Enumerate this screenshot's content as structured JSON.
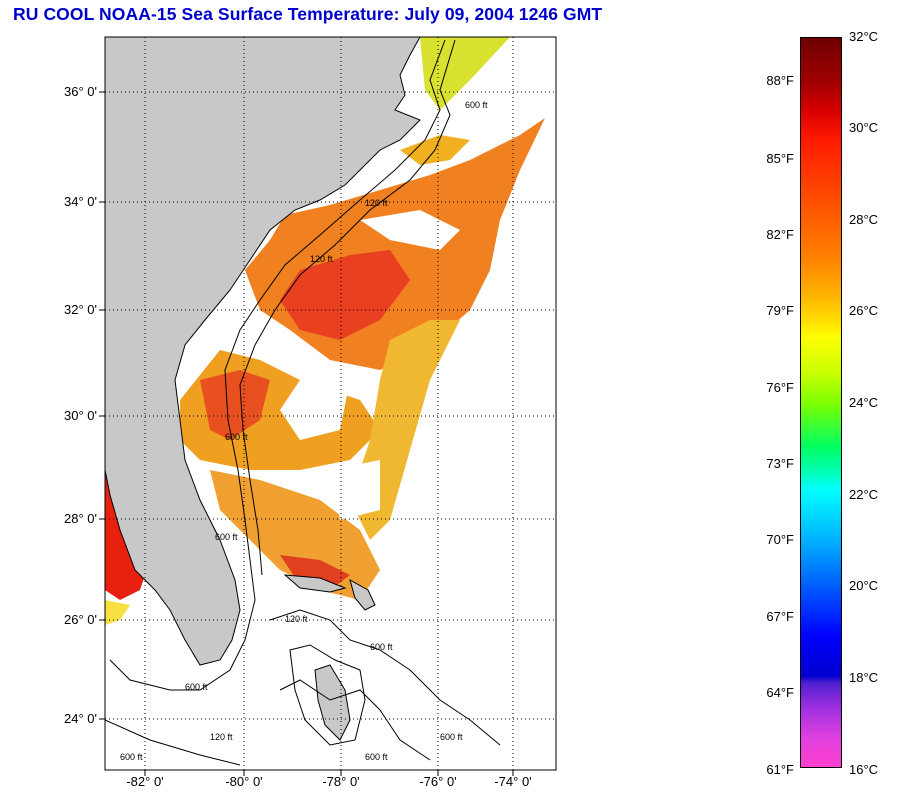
{
  "title": "RU COOL  NOAA-15  Sea Surface Temperature:  July 09, 2004 1246 GMT",
  "map": {
    "lat_labels": [
      "36° 0'",
      "34° 0'",
      "32° 0'",
      "30° 0'",
      "28° 0'",
      "26° 0'",
      "24° 0'"
    ],
    "lon_labels": [
      "-82° 0'",
      "-80° 0'",
      "-78° 0'",
      "-76° 0'",
      "-74° 0'"
    ],
    "contour_labels": [
      "600 ft",
      "120 ft",
      "120 ft",
      "600 ft",
      "120 ft",
      "600 ft",
      "600 ft",
      "600 ft",
      "120 ft",
      "600 ft",
      "600 ft",
      "600 ft"
    ],
    "land_color": "#c8c8c8",
    "ocean_color": "#ffffff"
  },
  "colorbar": {
    "celsius_labels": [
      "32°C",
      "30°C",
      "28°C",
      "26°C",
      "24°C",
      "22°C",
      "20°C",
      "18°C",
      "16°C"
    ],
    "fahrenheit_labels": [
      "88°F",
      "85°F",
      "82°F",
      "79°F",
      "76°F",
      "73°F",
      "70°F",
      "67°F",
      "64°F",
      "61°F"
    ],
    "range_c": [
      16,
      32
    ]
  }
}
